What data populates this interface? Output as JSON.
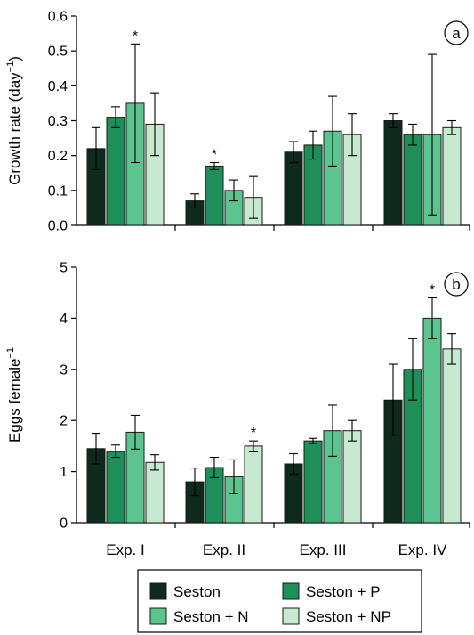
{
  "chart_data": [
    {
      "type": "bar",
      "panel_label": "a",
      "ylabel": "Growth rate (day",
      "ylabel_sup": "−1",
      "ylabel_suffix": ")",
      "ylim": [
        0,
        0.6
      ],
      "yticks": [
        "0.0",
        "0.1",
        "0.2",
        "0.3",
        "0.4",
        "0.5",
        "0.6"
      ],
      "categories": [
        "Exp. I",
        "Exp. II",
        "Exp. III",
        "Exp. IV"
      ],
      "series": [
        {
          "name": "Seston",
          "color": "#0d2a1c",
          "values": [
            0.22,
            0.07,
            0.21,
            0.3
          ],
          "errors": [
            0.06,
            0.02,
            0.03,
            0.02
          ]
        },
        {
          "name": "Seston + P",
          "color": "#1e8f58",
          "values": [
            0.31,
            0.17,
            0.23,
            0.26
          ],
          "errors": [
            0.03,
            0.01,
            0.04,
            0.03
          ]
        },
        {
          "name": "Seston + N",
          "color": "#5cc58f",
          "values": [
            0.35,
            0.1,
            0.27,
            0.26
          ],
          "errors": [
            0.17,
            0.03,
            0.1,
            0.23
          ]
        },
        {
          "name": "Seston + NP",
          "color": "#c7e9cf",
          "values": [
            0.29,
            0.08,
            0.26,
            0.28
          ],
          "errors": [
            0.09,
            0.06,
            0.06,
            0.02
          ]
        }
      ],
      "significance": [
        {
          "category": 0,
          "series": 2,
          "mark": "*"
        },
        {
          "category": 1,
          "series": 1,
          "mark": "*"
        }
      ]
    },
    {
      "type": "bar",
      "panel_label": "b",
      "ylabel": "Eggs female",
      "ylabel_sup": "−1",
      "ylabel_suffix": "",
      "ylim": [
        0,
        5
      ],
      "yticks": [
        "0",
        "1",
        "2",
        "3",
        "4",
        "5"
      ],
      "categories": [
        "Exp. I",
        "Exp. II",
        "Exp. III",
        "Exp. IV"
      ],
      "series": [
        {
          "name": "Seston",
          "color": "#0d2a1c",
          "values": [
            1.45,
            0.8,
            1.15,
            2.4
          ],
          "errors": [
            0.3,
            0.27,
            0.2,
            0.7
          ]
        },
        {
          "name": "Seston + P",
          "color": "#1e8f58",
          "values": [
            1.4,
            1.08,
            1.6,
            3.0
          ],
          "errors": [
            0.12,
            0.2,
            0.05,
            0.6
          ]
        },
        {
          "name": "Seston + N",
          "color": "#5cc58f",
          "values": [
            1.77,
            0.9,
            1.8,
            4.0
          ],
          "errors": [
            0.33,
            0.33,
            0.5,
            0.4
          ]
        },
        {
          "name": "Seston + NP",
          "color": "#c7e9cf",
          "values": [
            1.18,
            1.5,
            1.8,
            3.4
          ],
          "errors": [
            0.15,
            0.1,
            0.2,
            0.3
          ]
        }
      ],
      "significance": [
        {
          "category": 1,
          "series": 3,
          "mark": "*"
        },
        {
          "category": 3,
          "series": 2,
          "mark": "*"
        }
      ]
    }
  ],
  "legend": {
    "items": [
      {
        "label": "Seston",
        "color": "#0d2a1c"
      },
      {
        "label": "Seston + P",
        "color": "#1e8f58"
      },
      {
        "label": "Seston + N",
        "color": "#5cc58f"
      },
      {
        "label": "Seston + NP",
        "color": "#c7e9cf"
      }
    ]
  }
}
